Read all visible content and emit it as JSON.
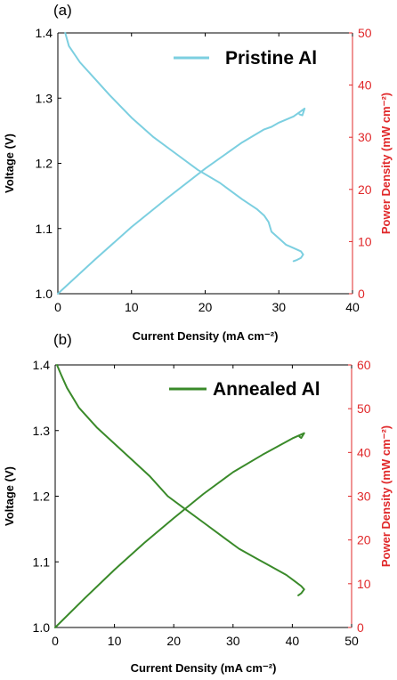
{
  "chart_data": [
    {
      "panel_label": "(a)",
      "type": "line",
      "xlabel": "Current Density (mA cm⁻²)",
      "ylabel_left": "Voltage (V)",
      "ylabel_right": "Power Density (mW cm⁻²)",
      "xlim": [
        0,
        40
      ],
      "ylim_left": [
        1.0,
        1.4
      ],
      "ylim_right": [
        0,
        50
      ],
      "xticks": [
        0,
        10,
        20,
        30,
        40
      ],
      "yticks_left": [
        1.0,
        1.1,
        1.2,
        1.3,
        1.4
      ],
      "yticks_right": [
        0,
        10,
        20,
        30,
        40,
        50
      ],
      "x_tick_labels": [
        "0",
        "10",
        "20",
        "30",
        "40"
      ],
      "yleft_tick_labels": [
        "1.0",
        "1.1",
        "1.2",
        "1.3",
        "1.4"
      ],
      "yright_tick_labels": [
        "0",
        "10",
        "20",
        "30",
        "40",
        "50"
      ],
      "legend": {
        "label": "Pristine Al",
        "position": "top-right"
      },
      "grid": false,
      "color": "#7ccfe0",
      "right_axis_color": "#e0282a",
      "series": [
        {
          "name": "Pristine Al",
          "axis": "left",
          "points": [
            [
              1.0,
              1.4
            ],
            [
              1.5,
              1.38
            ],
            [
              3,
              1.355
            ],
            [
              5,
              1.33
            ],
            [
              7,
              1.305
            ],
            [
              10,
              1.27
            ],
            [
              13,
              1.24
            ],
            [
              16,
              1.215
            ],
            [
              19,
              1.19
            ],
            [
              22,
              1.17
            ],
            [
              25,
              1.145
            ],
            [
              27,
              1.13
            ],
            [
              28,
              1.12
            ],
            [
              28.6,
              1.11
            ],
            [
              29,
              1.095
            ],
            [
              30,
              1.085
            ],
            [
              31,
              1.075
            ],
            [
              32,
              1.07
            ],
            [
              33,
              1.065
            ],
            [
              33.3,
              1.06
            ],
            [
              33,
              1.055
            ],
            [
              32.5,
              1.052
            ],
            [
              32,
              1.05
            ]
          ]
        },
        {
          "name": "Pristine Al",
          "axis": "right",
          "points": [
            [
              0,
              0
            ],
            [
              5,
              6.5
            ],
            [
              10,
              12.8
            ],
            [
              15,
              18.5
            ],
            [
              20,
              24
            ],
            [
              25,
              29
            ],
            [
              28,
              31.5
            ],
            [
              29,
              32
            ],
            [
              30,
              32.8
            ],
            [
              32,
              34
            ],
            [
              33,
              35
            ],
            [
              33.5,
              35.5
            ],
            [
              33.2,
              34.2
            ],
            [
              32.8,
              34.4
            ]
          ]
        }
      ]
    },
    {
      "panel_label": "(b)",
      "type": "line",
      "xlabel": "Current Density (mA cm⁻²)",
      "ylabel_left": "Voltage (V)",
      "ylabel_right": "Power Density (mW cm⁻²)",
      "xlim": [
        0,
        50
      ],
      "ylim_left": [
        1.0,
        1.4
      ],
      "ylim_right": [
        0,
        60
      ],
      "xticks": [
        0,
        10,
        20,
        30,
        40,
        50
      ],
      "yticks_left": [
        1.0,
        1.1,
        1.2,
        1.3,
        1.4
      ],
      "yticks_right": [
        0,
        10,
        20,
        30,
        40,
        50,
        60
      ],
      "x_tick_labels": [
        "0",
        "10",
        "20",
        "30",
        "40",
        "50"
      ],
      "yleft_tick_labels": [
        "1.0",
        "1.1",
        "1.2",
        "1.3",
        "1.4"
      ],
      "yright_tick_labels": [
        "0",
        "10",
        "20",
        "30",
        "40",
        "50",
        "60"
      ],
      "legend": {
        "label": "Annealed Al",
        "position": "top-right"
      },
      "grid": false,
      "color": "#3a8a2a",
      "right_axis_color": "#e0282a",
      "series": [
        {
          "name": "Annealed Al",
          "axis": "left",
          "points": [
            [
              0.3,
              1.4
            ],
            [
              1,
              1.385
            ],
            [
              2,
              1.365
            ],
            [
              4,
              1.335
            ],
            [
              7,
              1.305
            ],
            [
              10,
              1.28
            ],
            [
              13,
              1.255
            ],
            [
              16,
              1.23
            ],
            [
              19,
              1.2
            ],
            [
              22,
              1.18
            ],
            [
              25,
              1.16
            ],
            [
              28,
              1.14
            ],
            [
              31,
              1.12
            ],
            [
              34,
              1.105
            ],
            [
              37,
              1.09
            ],
            [
              39,
              1.08
            ],
            [
              40.5,
              1.07
            ],
            [
              41.5,
              1.063
            ],
            [
              42,
              1.058
            ],
            [
              41.5,
              1.052
            ],
            [
              41,
              1.049
            ]
          ]
        },
        {
          "name": "Annealed Al",
          "axis": "right",
          "points": [
            [
              0,
              0
            ],
            [
              5,
              6.7
            ],
            [
              10,
              13.2
            ],
            [
              15,
              19.3
            ],
            [
              20,
              25
            ],
            [
              25,
              30.5
            ],
            [
              30,
              35.5
            ],
            [
              35,
              39.5
            ],
            [
              40,
              43.2
            ],
            [
              42,
              44.4
            ],
            [
              41.5,
              43.3
            ],
            [
              41.2,
              43.6
            ]
          ]
        }
      ]
    }
  ]
}
